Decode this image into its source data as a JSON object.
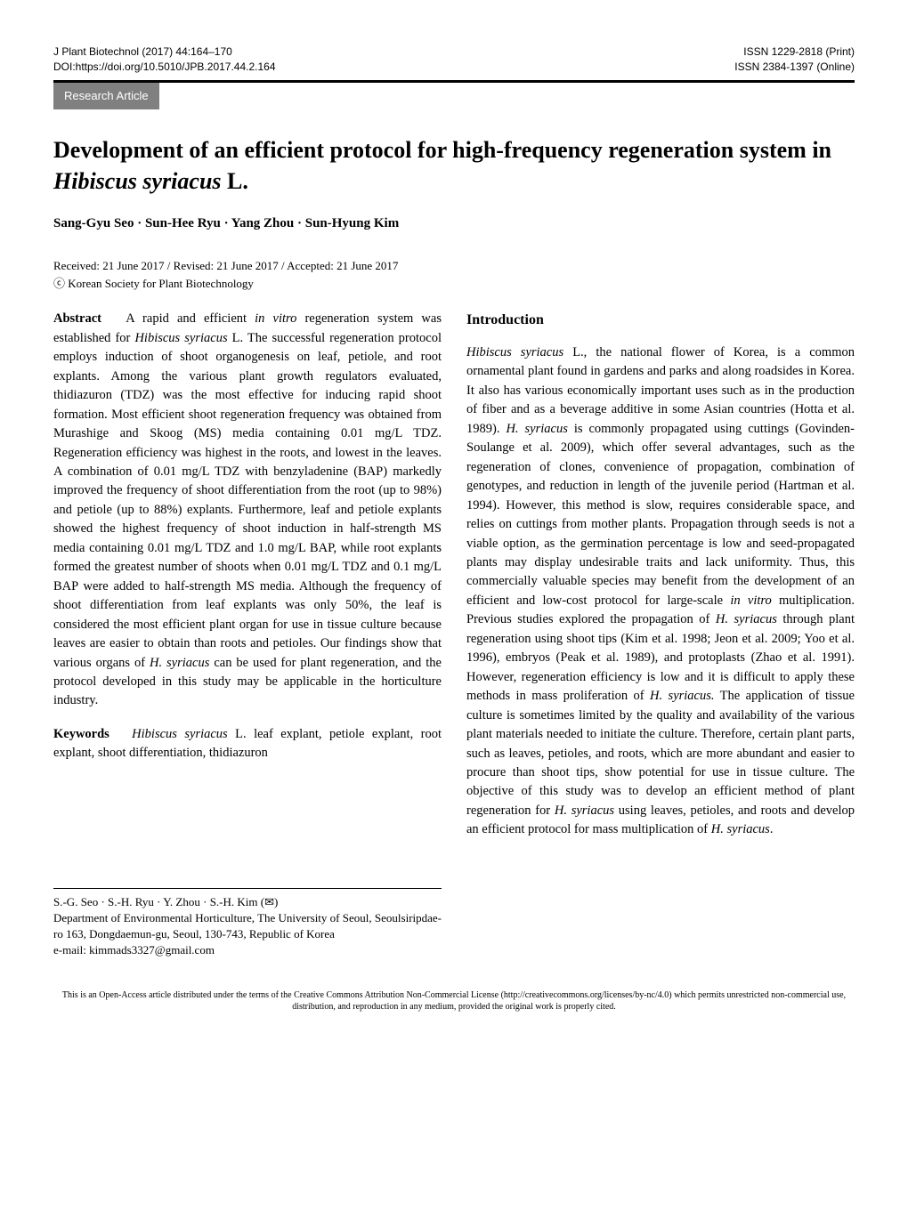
{
  "header": {
    "journal": "J Plant Biotechnol (2017) 44:164–170",
    "doi": "DOI:https://doi.org/10.5010/JPB.2017.44.2.164",
    "issn_print": "ISSN 1229-2818 (Print)",
    "issn_online": "ISSN 2384-1397 (Online)",
    "research_article": "Research Article"
  },
  "title_parts": {
    "pre": "Development of an efficient protocol for high-frequency regeneration system in ",
    "italic": "Hibiscus syriacus",
    "post": " L."
  },
  "authors": "Sang-Gyu Seo · Sun-Hee Ryu · Yang Zhou · Sun-Hyung Kim",
  "received": "Received: 21 June 2017 / Revised: 21 June 2017 / Accepted: 21 June 2017",
  "copyright": "ⓒ Korean Society for Plant Biotechnology",
  "abstract": {
    "label": "Abstract",
    "p1a": "A rapid and efficient ",
    "p1_italic1": "in vitro",
    "p1b": " regeneration system was established for ",
    "p1_italic2": "Hibiscus syriacus",
    "p1c": " L. The successful regeneration protocol employs induction of shoot organogenesis on leaf, petiole, and root explants. Among the various plant growth regulators evaluated, thidiazuron (TDZ) was the most effective for inducing rapid shoot formation. Most efficient shoot regeneration frequency was obtained from Murashige and Skoog (MS) media containing 0.01 mg/L TDZ. Regeneration efficiency was highest in the roots, and lowest in the leaves. A combination of 0.01 mg/L TDZ with benzyladenine (BAP) markedly improved the frequency of shoot differentiation from the root (up to 98%) and petiole (up to 88%) explants. Furthermore, leaf and petiole explants showed the highest frequency of shoot induction in half-strength MS media containing 0.01 mg/L TDZ and 1.0 mg/L BAP, while root explants formed the greatest number of shoots when 0.01 mg/L TDZ and 0.1 mg/L BAP were added to half-strength MS media. Although the frequency of shoot differentiation from leaf explants was only 50%, the leaf is considered the most efficient plant organ for use in tissue culture because leaves are easier to obtain than roots and petioles. Our findings show that various organs of ",
    "p1_italic3": "H. syriacus",
    "p1d": " can be used for plant regeneration, and the protocol developed in this study may be applicable in the horticulture industry."
  },
  "keywords": {
    "label": "Keywords",
    "italic": "Hibiscus syriacus",
    "rest": " L. leaf explant, petiole explant, root explant, shoot differentiation, thidiazuron"
  },
  "corr": {
    "line1": "S.-G. Seo · S.-H. Ryu · Y. Zhou · S.-H. Kim (✉)",
    "line2": "Department of Environmental Horticulture, The University of Seoul, Seoulsiripdae-ro 163, Dongdaemun-gu, Seoul, 130-743, Republic of Korea",
    "line3": "e-mail: kimmads3327@gmail.com"
  },
  "intro": {
    "heading": "Introduction",
    "a": "",
    "i1": "Hibiscus syriacus",
    "b": " L., the national flower of Korea, is a common ornamental plant found in gardens and parks and along roadsides in Korea. It also has various economically important uses such as in the production of fiber and as a beverage additive in some Asian countries (Hotta et al. 1989). ",
    "i2": "H. syriacus",
    "c": " is commonly propagated using cuttings (Govinden-Soulange et al. 2009), which offer several advantages, such as the regeneration of clones, convenience of propagation, combination of genotypes, and reduction in length of the juvenile period (Hartman et al. 1994). However, this method is slow, requires considerable space, and relies on cuttings from mother plants. Propagation through seeds is not a viable option, as the germination percentage is low and seed-propagated plants may display undesirable traits and lack uniformity. Thus, this commercially valuable species may benefit from the development of an efficient and low-cost protocol for large-scale ",
    "i3": "in vitro",
    "d": " multiplication. Previous studies explored the propagation of ",
    "i4": "H. syriacus",
    "e": " through plant regeneration using shoot tips (Kim et al. 1998; Jeon et al. 2009; Yoo et al. 1996), embryos (Peak et al. 1989), and protoplasts (Zhao et al. 1991). However, regeneration efficiency is low and it is difficult to apply these methods in mass proliferation of ",
    "i5": "H. syriacus.",
    "f": " The application of tissue culture is sometimes limited by the quality and availability of the various plant materials needed to initiate the culture. Therefore, certain plant parts, such as leaves, petioles, and roots, which are more abundant and easier to procure than shoot tips, show potential for use in tissue culture. The objective of this study was to develop an efficient method of plant regeneration for ",
    "i6": "H. syriacus",
    "g": " using leaves, petioles, and roots and develop an efficient protocol for mass multiplication of ",
    "i7": "H. syriacus",
    "h": "."
  },
  "footer": {
    "text": "This is an Open-Access article distributed under the terms of the Creative Commons Attribution Non-Commercial License (http://creativecommons.org/licenses/by-nc/4.0) which permits unrestricted non-commercial use, distribution, and reproduction in any medium, provided the original work is properly cited."
  }
}
